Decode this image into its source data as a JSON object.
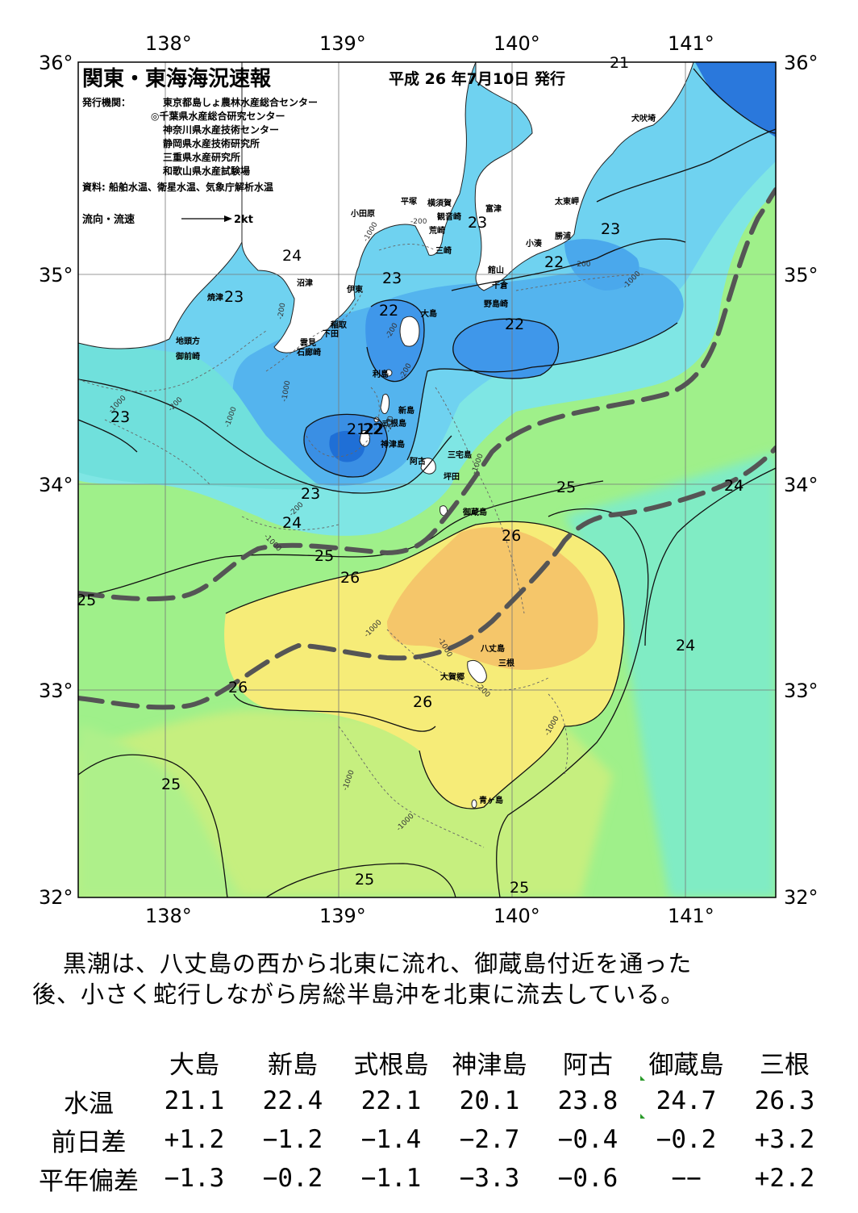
{
  "header": {
    "title": "関東・東海海況速報",
    "date": "平成 26 年7月10日 発行",
    "publisher_label": "発行機関：",
    "publishers": [
      "東京都島しょ農林水産総合センター",
      "◎千葉県水産総合研究センター",
      "神奈川県水産技術センター",
      "静岡県水産技術研究所",
      "三重県水産研究所",
      "和歌山県水産試験場"
    ],
    "sources": "資料: 船舶水温、衛星水温、気象庁解析水温",
    "legend_label": "流向・流速",
    "legend_speed": "2kt"
  },
  "axes": {
    "lon_labels": [
      "138°",
      "139°",
      "140°",
      "141°"
    ],
    "lat_labels": [
      "36°",
      "35°",
      "34°",
      "33°",
      "32°"
    ]
  },
  "place_names": {
    "inubosaki": "犬吠埼",
    "taitomisaki": "太東岬",
    "katsuura": "勝浦",
    "kominato": "小湊",
    "futtsu": "富津",
    "yokosuka": "横須賀",
    "kannonzaki": "観音崎",
    "hiratsuka": "平塚",
    "odawara": "小田原",
    "araisaki": "荒崎",
    "misaki": "三崎",
    "tateyama": "館山",
    "chikura": "千倉",
    "nojimazaki": "野島崎",
    "numazu": "沼津",
    "ito": "伊東",
    "yaizu": "焼津",
    "inatori": "稲取",
    "shimoda": "下田",
    "kumomi": "雲見",
    "irozaki": "石廊崎",
    "jitogata": "地頭方",
    "omaezaki": "御前崎",
    "oshima": "大島",
    "toshima": "利島",
    "niijima": "新島",
    "shikinejima": "式根島",
    "kozushima": "神津島",
    "miyakejima": "三宅島",
    "ako": "阿古",
    "tsubota": "坪田",
    "mikurajima": "御蔵島",
    "hachijojima": "八丈島",
    "mitsune": "三根",
    "okago": "大賀郷",
    "aogashima": "青ヶ島"
  },
  "isotherm_labels": [
    "21",
    "23",
    "23",
    "22",
    "22",
    "22",
    "23",
    "23",
    "24",
    "23",
    "22",
    "21",
    "22",
    "23",
    "24",
    "25",
    "26",
    "25",
    "26",
    "25",
    "24",
    "24",
    "24",
    "26",
    "26",
    "25",
    "25",
    "25"
  ],
  "depth_labels": [
    "-200",
    "-1000",
    "-200",
    "-200",
    "-1000",
    "-200",
    "-200",
    "-1000",
    "-200",
    "-1000",
    "-1000",
    "-200",
    "-1000",
    "-200",
    "-1000",
    "-1000",
    "-1000",
    "-1000",
    "-200",
    "-1000",
    "-1000"
  ],
  "summary": {
    "line1": "黒潮は、八丈島の西から北東に流れ、御蔵島付近を通った",
    "line2": "後、小さく蛇行しながら房総半島沖を北東に流去している。"
  },
  "table": {
    "columns": [
      "大島",
      "新島",
      "式根島",
      "神津島",
      "阿古",
      "御蔵島",
      "三根"
    ],
    "rows": [
      {
        "label": "水温",
        "values": [
          "21.1",
          "22.4",
          "22.1",
          "20.1",
          "23.8",
          "24.7",
          "26.3"
        ]
      },
      {
        "label": "前日差",
        "values": [
          "+1.2",
          "−1.2",
          "−1.4",
          "−2.7",
          "−0.4",
          "−0.2",
          "+3.2"
        ]
      },
      {
        "label": "平年偏差",
        "values": [
          "−1.3",
          "−0.2",
          "−1.1",
          "−3.3",
          "−0.6",
          "−−",
          "+2.2"
        ]
      }
    ]
  },
  "colors": {
    "t21": "#1f6fd6",
    "t22": "#3f97ea",
    "t23": "#66bff2",
    "t23b": "#7fe0e8",
    "t24": "#7feec6",
    "t24b": "#8ff08c",
    "t25": "#c3ef80",
    "t25b": "#eef27a",
    "t26": "#fbe27a",
    "t26b": "#f5c267",
    "land": "#ffffff",
    "kuroshio": "#555555"
  }
}
